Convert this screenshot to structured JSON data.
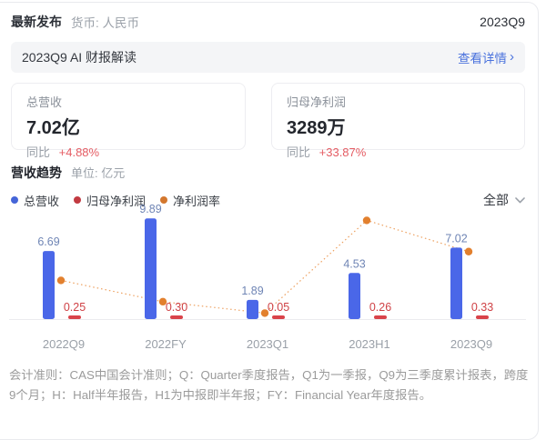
{
  "header": {
    "title": "最新发布",
    "currency_label": "货币: 人民币",
    "period": "2023Q9"
  },
  "banner": {
    "title": "2023Q9 AI 财报解读",
    "link_label": "查看详情",
    "chevron": "›"
  },
  "stat_cards": [
    {
      "label": "总营收",
      "value": "7.02亿",
      "yoy_label": "同比",
      "yoy_value": "+4.88%"
    },
    {
      "label": "归母净利润",
      "value": "3289万",
      "yoy_label": "同比",
      "yoy_value": "+33.87%"
    }
  ],
  "section": {
    "title": "营收趋势",
    "unit_label": "单位: 亿元",
    "filter_label": "全部"
  },
  "legend": [
    {
      "label": "总营收",
      "color": "#4565d8"
    },
    {
      "label": "归母净利润",
      "color": "#c23a41"
    },
    {
      "label": "净利润率",
      "color": "#d3772e"
    }
  ],
  "chart_data": {
    "type": "bar",
    "title": "营收趋势",
    "unit": "亿元",
    "categories": [
      "2022Q9",
      "2022FY",
      "2023Q1",
      "2023H1",
      "2023Q9"
    ],
    "series": [
      {
        "name": "总营收",
        "type": "bar",
        "color": "#4a67e8",
        "label_color": "#6f85b5",
        "values": [
          6.69,
          9.89,
          1.89,
          4.53,
          7.02
        ]
      },
      {
        "name": "归母净利润",
        "type": "bar",
        "color": "#d9434a",
        "label_color": "#cf4145",
        "values": [
          0.25,
          0.3,
          0.05,
          0.26,
          0.33
        ]
      },
      {
        "name": "净利润率",
        "type": "line",
        "color": "#e2802e",
        "line_color": "#eda05f",
        "values_pct": [
          3.74,
          3.03,
          2.65,
          5.74,
          4.7
        ]
      }
    ],
    "ylim": [
      0,
      10
    ],
    "grid": false,
    "legend_position": "top-left",
    "tick_color": "#9aa0a8"
  },
  "footer": {
    "note": "会计准则：CAS中国会计准则；Q：Quarter季度报告，Q1为一季报，Q9为三季度累计报表，跨度9个月；H：Half半年报告，H1为中报即半年报；FY：Financial Year年度报告。"
  }
}
